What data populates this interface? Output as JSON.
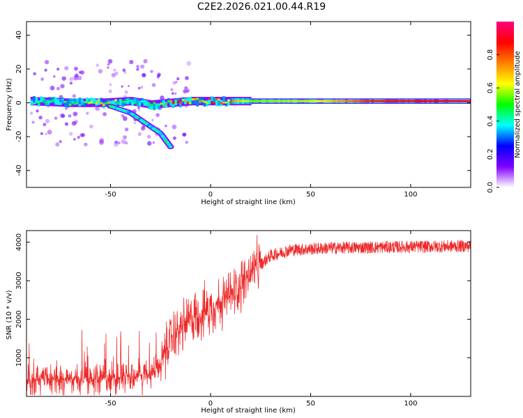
{
  "title": "C2E2.2026.021.00.44.R19",
  "chart_data": [
    {
      "type": "heatmap",
      "name": "spectrogram",
      "xlabel": "Height of straight line (km)",
      "ylabel": "Frequency (Hz)",
      "xlim": [
        -92,
        130
      ],
      "ylim": [
        -50,
        48
      ],
      "xticks": [
        -50,
        0,
        50,
        100
      ],
      "yticks": [
        -40,
        -20,
        0,
        20,
        40
      ],
      "colorbar": {
        "label": "Normalized spectral amplitude",
        "range": [
          0,
          1
        ],
        "ticks": [
          "0.0",
          "0.2",
          "0.4",
          "0.6",
          "0.8"
        ],
        "tick_values": [
          0,
          0.2,
          0.4,
          0.6,
          0.8
        ],
        "colors": [
          "#ffffff",
          "#8000ff",
          "#0000ff",
          "#00ffff",
          "#00ff00",
          "#ffff00",
          "#ff8000",
          "#ff0000",
          "#ff0080"
        ]
      },
      "ridge": {
        "description_points": [
          {
            "x": -90,
            "y": 1,
            "amp": 0.45
          },
          {
            "x": -70,
            "y": 0,
            "amp": 0.5
          },
          {
            "x": -55,
            "y": 0,
            "amp": 0.75
          },
          {
            "x": -40,
            "y": 1,
            "amp": 0.45
          },
          {
            "x": -30,
            "y": -1,
            "amp": 0.5
          },
          {
            "x": -20,
            "y": 0,
            "amp": 0.8
          },
          {
            "x": -10,
            "y": 1,
            "amp": 0.9
          },
          {
            "x": 0,
            "y": 1,
            "amp": 0.95
          },
          {
            "x": 20,
            "y": 1,
            "amp": 0.55
          },
          {
            "x": 50,
            "y": 1,
            "amp": 0.6
          },
          {
            "x": 80,
            "y": 1,
            "amp": 0.85
          },
          {
            "x": 130,
            "y": 1,
            "amp": 0.9
          }
        ],
        "branch": [
          {
            "x": -50,
            "y": -2
          },
          {
            "x": -40,
            "y": -6
          },
          {
            "x": -35,
            "y": -10
          },
          {
            "x": -30,
            "y": -14
          },
          {
            "x": -25,
            "y": -18
          },
          {
            "x": -20,
            "y": -26
          }
        ]
      }
    },
    {
      "type": "line",
      "name": "snr",
      "xlabel": "Height of straight line (km)",
      "ylabel": "SNR (10 * v/v)",
      "xlim": [
        -92,
        130
      ],
      "ylim": [
        0,
        4300
      ],
      "xticks": [
        -50,
        0,
        50,
        100
      ],
      "yticks": [
        1000,
        2000,
        3000,
        4000
      ],
      "color": "#ee2a2a",
      "trend": [
        {
          "x": -92,
          "y": 450
        },
        {
          "x": -60,
          "y": 450
        },
        {
          "x": -45,
          "y": 500
        },
        {
          "x": -30,
          "y": 550
        },
        {
          "x": -25,
          "y": 800
        },
        {
          "x": -20,
          "y": 1500
        },
        {
          "x": -10,
          "y": 2000
        },
        {
          "x": 0,
          "y": 2300
        },
        {
          "x": 10,
          "y": 2600
        },
        {
          "x": 20,
          "y": 3200
        },
        {
          "x": 30,
          "y": 3650
        },
        {
          "x": 40,
          "y": 3800
        },
        {
          "x": 60,
          "y": 3850
        },
        {
          "x": 100,
          "y": 3880
        },
        {
          "x": 130,
          "y": 3900
        }
      ]
    }
  ]
}
